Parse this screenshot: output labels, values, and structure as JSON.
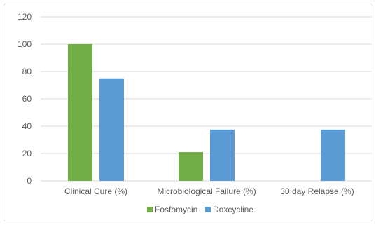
{
  "chart_data": {
    "type": "bar",
    "title": "",
    "xlabel": "",
    "ylabel": "",
    "categories": [
      "Clinical Cure (%)",
      "Microbiological Failure (%)",
      "30 day Relapse (%)"
    ],
    "series": [
      {
        "name": "Fosfomycin",
        "values": [
          100,
          21,
          0
        ],
        "color": "#70ad47"
      },
      {
        "name": "Doxcycline",
        "values": [
          75,
          37.5,
          37.5
        ],
        "color": "#5b9bd5"
      }
    ],
    "ylim": [
      0,
      120
    ],
    "yticks": [
      0,
      20,
      40,
      60,
      80,
      100,
      120
    ],
    "grid": true,
    "legend_position": "bottom"
  }
}
